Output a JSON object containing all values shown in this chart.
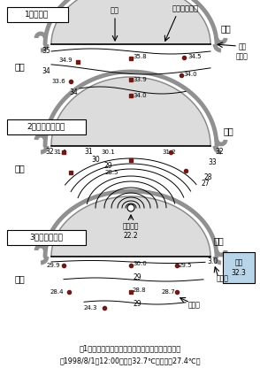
{
  "title1": "1．対照区",
  "title2": "2．パイプ冷却区",
  "title3": "3．気化冷却区",
  "caption_line1": "図1　培地冷却の方法と夏季日中の培地内温度分布",
  "caption_line2": "（1998/8/1　12:00、気温32.7℃湿球温度27.4℃）",
  "lbl_west": "西側",
  "lbl_east": "東側",
  "lbl_bachi": "培地",
  "lbl_silver": "シルバーポリ",
  "lbl_pipe": "直管\nパイプ",
  "lbl_cooling": "冷却水温\n22.2",
  "lbl_ame": "雨とい",
  "lbl_fusoku": "不織布",
  "lbl_suion": "水温\n32.3",
  "white": "#ffffff",
  "bowl_fill": "#dcdcdc",
  "bowl_outer": "#b0b0b0",
  "black": "#000000",
  "dark_red": "#6b1a1a",
  "water_blue": "#b8d4e8"
}
